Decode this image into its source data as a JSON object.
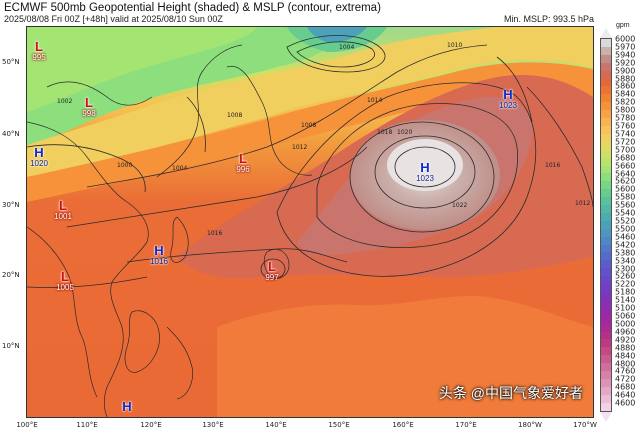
{
  "header": {
    "title": "ECMWF 500mb Geopotential Height (shaded) & MSLP (contour, extrema)",
    "subtitle": "2025/08/08 Fri 00Z [+48h] valid at 2025/08/10 Sun 00Z",
    "min_mslp": "Min. MSLP: 993.5 hPa"
  },
  "colorbar": {
    "unit": "gpm",
    "levels": [
      "6000",
      "5970",
      "5940",
      "5920",
      "5900",
      "5880",
      "5860",
      "5840",
      "5820",
      "5800",
      "5780",
      "5760",
      "5740",
      "5720",
      "5700",
      "5680",
      "5660",
      "5640",
      "5620",
      "5600",
      "5580",
      "5560",
      "5540",
      "5520",
      "5500",
      "5460",
      "5420",
      "5380",
      "5340",
      "5300",
      "5260",
      "5220",
      "5180",
      "5140",
      "5100",
      "5060",
      "5000",
      "4960",
      "4920",
      "4880",
      "4840",
      "4800",
      "4760",
      "4720",
      "4680",
      "4640",
      "4600"
    ],
    "colors": [
      "#d9d9d9",
      "#cbb1ac",
      "#c08d87",
      "#c9756e",
      "#d96a52",
      "#e5683a",
      "#ee7332",
      "#f28233",
      "#f6933a",
      "#f8a345",
      "#f9b34f",
      "#f7c25a",
      "#f0cf5f",
      "#e2d862",
      "#cfe066",
      "#b9e46b",
      "#a3e473",
      "#8ddf7d",
      "#78d786",
      "#66cd8f",
      "#58c29a",
      "#50b8a4",
      "#4cadaf",
      "#4ba2b8",
      "#4c96c0",
      "#4e88c6",
      "#5179c9",
      "#556bcb",
      "#5a5ecc",
      "#6152cc",
      "#6947c9",
      "#733dc4",
      "#7e35bd",
      "#8a2fb4",
      "#962aab",
      "#a128a0",
      "#ac2a95",
      "#b53089",
      "#bd3a80",
      "#c44a84",
      "#cb5b8f",
      "#d16d9b",
      "#d780a8",
      "#dd93b6",
      "#e4a7c4",
      "#ebbcd3",
      "#f3d2e3"
    ]
  },
  "axes": {
    "lat_labels": [
      "50°N",
      "40°N",
      "30°N",
      "20°N",
      "10°N"
    ],
    "lon_labels": [
      "100°E",
      "110°E",
      "120°E",
      "130°E",
      "140°E",
      "150°E",
      "160°E",
      "170°E",
      "180°W",
      "170°W"
    ]
  },
  "systems": [
    {
      "type": "L",
      "value": "995"
    },
    {
      "type": "L",
      "value": "998"
    },
    {
      "type": "H",
      "value": "1020"
    },
    {
      "type": "L",
      "value": "996"
    },
    {
      "type": "L",
      "value": "1001"
    },
    {
      "type": "H",
      "value": "1016"
    },
    {
      "type": "L",
      "value": "1005"
    },
    {
      "type": "L",
      "value": "997"
    },
    {
      "type": "H",
      "value": "1023"
    },
    {
      "type": "H",
      "value": "1023"
    },
    {
      "type": "H",
      "value": ""
    }
  ],
  "contour_labels": [
    "1004",
    "1008",
    "1010",
    "1012",
    "1014",
    "1016",
    "1018",
    "1020",
    "1022",
    "1002",
    "1000",
    "1004",
    "1008",
    "1012",
    "1016"
  ],
  "watermark": "头条 @中国气象爱好者"
}
